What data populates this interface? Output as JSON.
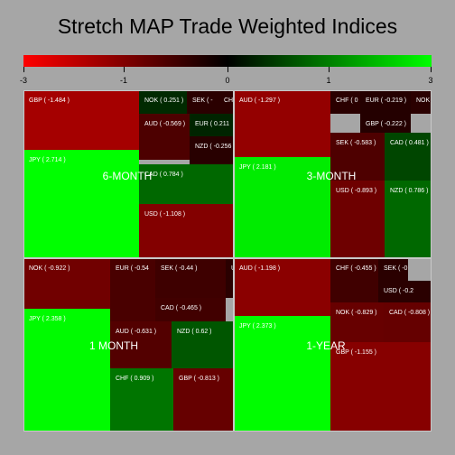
{
  "chart_data": {
    "type": "treemap",
    "title": "Stretch MAP Trade Weighted Indices",
    "color_scale": {
      "min": -3,
      "max": 3,
      "ticks": [
        "-3",
        "-1",
        "0",
        "1",
        "3"
      ],
      "colors": {
        "negative": "#ff0000",
        "neutral": "#000000",
        "positive": "#00ff00"
      }
    },
    "panels": [
      {
        "name": "6-MONTH",
        "cells": [
          {
            "label": "GBP ( -1.484 )",
            "value": -1.484
          },
          {
            "label": "NOK ( 0.251 )",
            "value": 0.251
          },
          {
            "label": "SEK ( -",
            "value": null
          },
          {
            "label": "CH",
            "value": null
          },
          {
            "label": "AUD ( -0.569 )",
            "value": -0.569
          },
          {
            "label": "EUR ( 0.211",
            "value": 0.211
          },
          {
            "label": "NZD ( -0.256",
            "value": -0.256
          },
          {
            "label": "JPY ( 2.714 )",
            "value": 2.714
          },
          {
            "label": "CAD ( 0.784 )",
            "value": 0.784
          },
          {
            "label": "USD ( -1.108 )",
            "value": -1.108
          }
        ]
      },
      {
        "name": "3-MONTH",
        "cells": [
          {
            "label": "AUD ( -1.297 )",
            "value": -1.297
          },
          {
            "label": "CHF ( 0",
            "value": null
          },
          {
            "label": "EUR ( -0.219 )",
            "value": -0.219
          },
          {
            "label": "NOK",
            "value": null
          },
          {
            "label": "GBP ( -0.222 )",
            "value": -0.222
          },
          {
            "label": "SEK ( -0.583 )",
            "value": -0.583
          },
          {
            "label": "CAD ( 0.481 )",
            "value": 0.481
          },
          {
            "label": "JPY ( 2.181 )",
            "value": 2.181
          },
          {
            "label": "USD ( -0.893 )",
            "value": -0.893
          },
          {
            "label": "NZD ( 0.786 )",
            "value": 0.786
          }
        ]
      },
      {
        "name": "1 MONTH",
        "cells": [
          {
            "label": "NOK ( -0.922 )",
            "value": -0.922
          },
          {
            "label": "EUR ( -0.54",
            "value": -0.54
          },
          {
            "label": "SEK ( -0.44 )",
            "value": -0.44
          },
          {
            "label": "U",
            "value": null
          },
          {
            "label": "CAD ( -0.465 )",
            "value": -0.465
          },
          {
            "label": "JPY ( 2.358 )",
            "value": 2.358
          },
          {
            "label": "AUD ( -0.631 )",
            "value": -0.631
          },
          {
            "label": "NZD ( 0.62 )",
            "value": 0.62
          },
          {
            "label": "CHF ( 0.909 )",
            "value": 0.909
          },
          {
            "label": "GBP ( -0.813 )",
            "value": -0.813
          }
        ]
      },
      {
        "name": "1-YEAR",
        "cells": [
          {
            "label": "AUD ( -1.198 )",
            "value": -1.198
          },
          {
            "label": "CHF ( -0.455 )",
            "value": -0.455
          },
          {
            "label": "SEK ( -0.1",
            "value": null
          },
          {
            "label": "USD ( -0.2",
            "value": null
          },
          {
            "label": "NOK ( -0.829 )",
            "value": -0.829
          },
          {
            "label": "CAD ( -0.808 )",
            "value": -0.808
          },
          {
            "label": "JPY ( 2.373 )",
            "value": 2.373
          },
          {
            "label": "GBP ( -1.155 )",
            "value": -1.155
          }
        ]
      }
    ]
  }
}
